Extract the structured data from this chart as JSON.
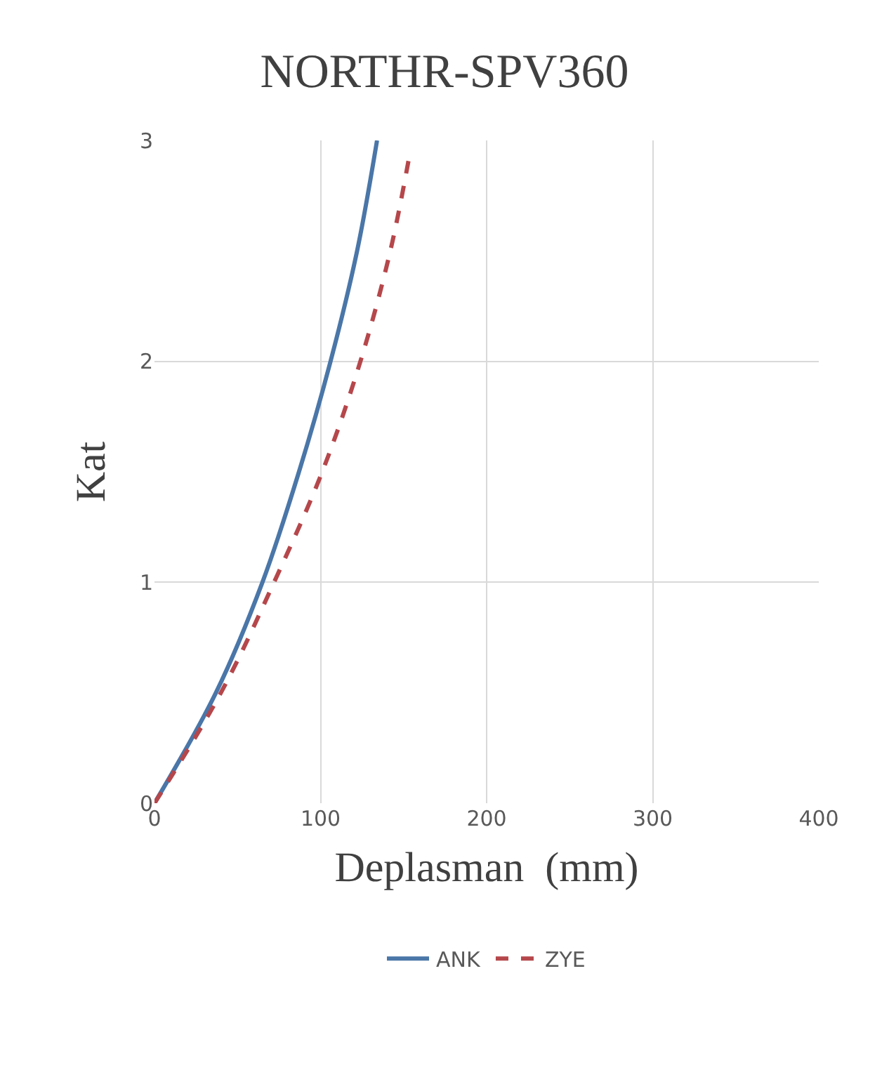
{
  "chart_data": {
    "type": "line",
    "title": "NORTHR-SPV360",
    "xlabel": "Deplasman  (mm)",
    "ylabel": "Kat",
    "xlim": [
      0,
      400
    ],
    "xticks": [
      0,
      100,
      200,
      300,
      400
    ],
    "ylim": [
      0,
      3
    ],
    "yticks": [
      0,
      1,
      2,
      3
    ],
    "grid": true,
    "legend": "bottom",
    "series": [
      {
        "name": "ANK",
        "color": "#4a76a8",
        "line_style": "solid",
        "x": [
          0,
          37,
          65,
          87,
          106,
          122,
          134
        ],
        "values": [
          0,
          0.5,
          1,
          1.5,
          2,
          2.5,
          3
        ]
      },
      {
        "name": "ZYE",
        "color": "#b5474b",
        "line_style": "dashed",
        "x": [
          0,
          40,
          72,
          101,
          124,
          142,
          153
        ],
        "values": [
          0,
          0.5,
          1,
          1.5,
          2,
          2.5,
          2.91
        ]
      }
    ]
  }
}
